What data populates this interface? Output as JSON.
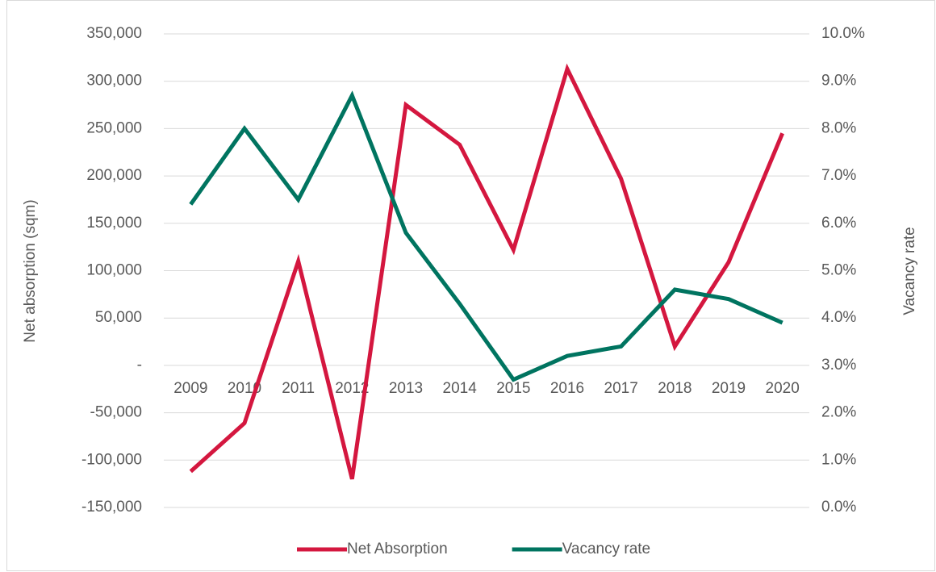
{
  "chart_data": {
    "type": "line",
    "categories": [
      "2009",
      "2010",
      "2011",
      "2012",
      "2013",
      "2014",
      "2015",
      "2016",
      "2017",
      "2018",
      "2019",
      "2020"
    ],
    "series": [
      {
        "name": "Net Absorption",
        "color": "#d4173f",
        "values": [
          -112000,
          -61000,
          110000,
          -120000,
          275000,
          233000,
          122000,
          313000,
          197000,
          20000,
          109000,
          245000
        ]
      },
      {
        "name": "Vacancy rate",
        "color": "#007460",
        "axis": "y2",
        "values": [
          6.4,
          8.0,
          6.5,
          8.7,
          5.8,
          4.3,
          2.7,
          3.2,
          3.4,
          4.6,
          4.4,
          3.9
        ]
      }
    ],
    "ylabel": "Net absorption (sqm)",
    "y2label": "Vacancy rate",
    "ylim": [
      -150000,
      350000
    ],
    "yticks": [
      {
        "value": -150000,
        "label": "-150,000"
      },
      {
        "value": -100000,
        "label": "-100,000"
      },
      {
        "value": -50000,
        "label": "-50,000"
      },
      {
        "value": 0,
        "label": "-"
      },
      {
        "value": 50000,
        "label": "50,000"
      },
      {
        "value": 100000,
        "label": "100,000"
      },
      {
        "value": 150000,
        "label": "150,000"
      },
      {
        "value": 200000,
        "label": "200,000"
      },
      {
        "value": 250000,
        "label": "250,000"
      },
      {
        "value": 300000,
        "label": "300,000"
      },
      {
        "value": 350000,
        "label": "350,000"
      }
    ],
    "y2lim": [
      0,
      10
    ],
    "y2ticks": [
      {
        "value": 0,
        "label": "0.0%"
      },
      {
        "value": 1,
        "label": "1.0%"
      },
      {
        "value": 2,
        "label": "2.0%"
      },
      {
        "value": 3,
        "label": "3.0%"
      },
      {
        "value": 4,
        "label": "4.0%"
      },
      {
        "value": 5,
        "label": "5.0%"
      },
      {
        "value": 6,
        "label": "6.0%"
      },
      {
        "value": 7,
        "label": "7.0%"
      },
      {
        "value": 8,
        "label": "8.0%"
      },
      {
        "value": 9,
        "label": "9.0%"
      },
      {
        "value": 10,
        "label": "10.0%"
      }
    ],
    "grid": true,
    "legend": "bottom"
  }
}
